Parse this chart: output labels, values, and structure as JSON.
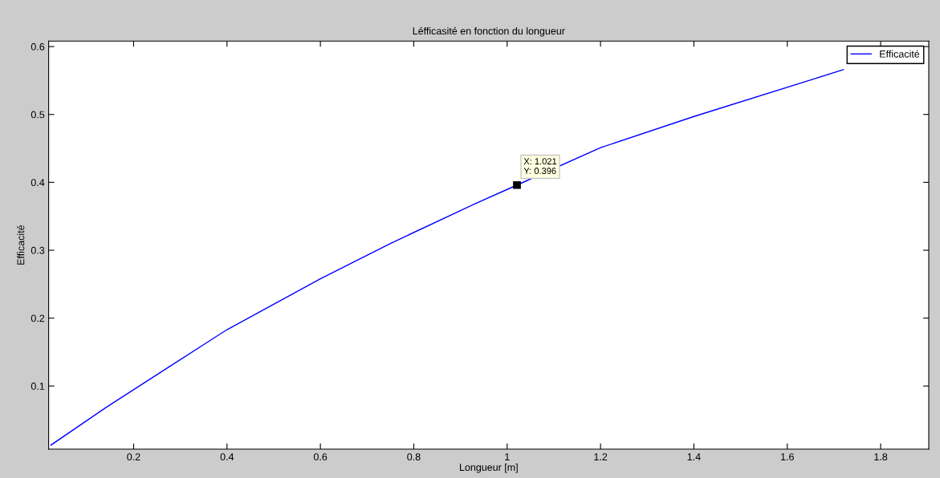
{
  "chart_data": {
    "type": "line",
    "title": "Léfficasité en fonction du longueur",
    "xlabel": "Longueur [m]",
    "ylabel": "Efficacité",
    "series": [
      {
        "name": "Efficacité",
        "color": "#0000ff",
        "x": [
          0.023,
          0.14,
          0.28,
          0.4,
          0.6,
          0.75,
          0.93,
          1.021,
          1.2,
          1.4,
          1.66,
          1.72
        ],
        "values": [
          0.013,
          0.068,
          0.13,
          0.183,
          0.258,
          0.31,
          0.368,
          0.396,
          0.451,
          0.497,
          0.553,
          0.566
        ]
      }
    ],
    "annotations": [
      {
        "text": "X: 1.021\nY: 0.396",
        "x": 1.021,
        "y": 0.396
      }
    ],
    "xlim": [
      0.018,
      1.903
    ],
    "ylim": [
      0.007,
      0.608
    ],
    "xticks": [
      0.2,
      0.4,
      0.6,
      0.8,
      1,
      1.2,
      1.4,
      1.6,
      1.8
    ],
    "yticks": [
      0.1,
      0.2,
      0.3,
      0.4,
      0.5,
      0.6
    ],
    "legend": "top right",
    "grid": false,
    "marker": "none",
    "line_style": "solid"
  }
}
